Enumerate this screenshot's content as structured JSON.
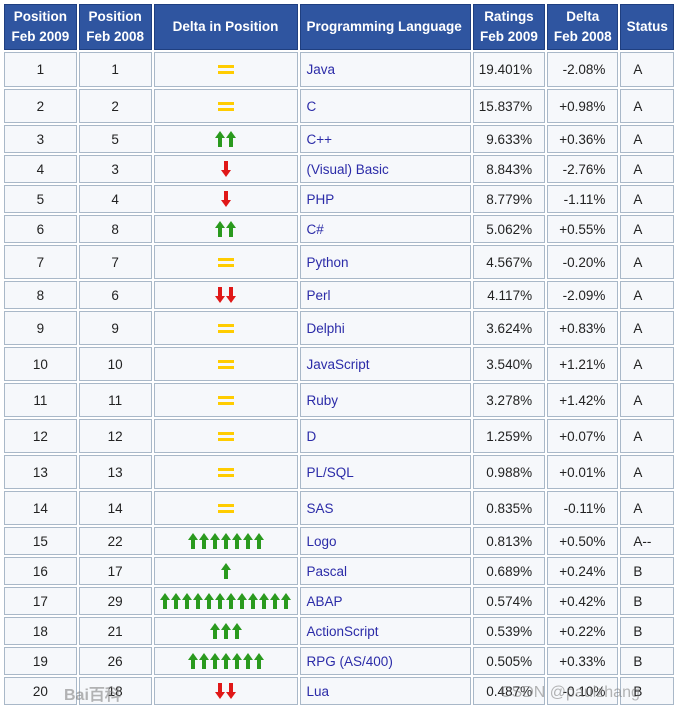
{
  "headers": {
    "pos2009": [
      "Position",
      "Feb 2009"
    ],
    "pos2008": [
      "Position",
      "Feb 2008"
    ],
    "delta_position": "Delta in Position",
    "language": "Programming Language",
    "ratings": [
      "Ratings",
      "Feb 2009"
    ],
    "delta": [
      "Delta",
      "Feb 2008"
    ],
    "status": "Status"
  },
  "rows": [
    {
      "pos2009": "1",
      "pos2008": "1",
      "trend": {
        "dir": "same",
        "count": 0
      },
      "language": "Java",
      "rating": "19.401%",
      "delta": "-2.08%",
      "status": "A",
      "h": 35
    },
    {
      "pos2009": "2",
      "pos2008": "2",
      "trend": {
        "dir": "same",
        "count": 0
      },
      "language": "C",
      "rating": "15.837%",
      "delta": "+0.98%",
      "status": "A",
      "h": 34
    },
    {
      "pos2009": "3",
      "pos2008": "5",
      "trend": {
        "dir": "up",
        "count": 2
      },
      "language": "C++",
      "rating": "9.633%",
      "delta": "+0.36%",
      "status": "A",
      "h": 28
    },
    {
      "pos2009": "4",
      "pos2008": "3",
      "trend": {
        "dir": "down",
        "count": 1
      },
      "language": "(Visual) Basic",
      "rating": "8.843%",
      "delta": "-2.76%",
      "status": "A",
      "h": 28
    },
    {
      "pos2009": "5",
      "pos2008": "4",
      "trend": {
        "dir": "down",
        "count": 1
      },
      "language": "PHP",
      "rating": "8.779%",
      "delta": "-1.11%",
      "status": "A",
      "h": 28
    },
    {
      "pos2009": "6",
      "pos2008": "8",
      "trend": {
        "dir": "up",
        "count": 2
      },
      "language": "C#",
      "rating": "5.062%",
      "delta": "+0.55%",
      "status": "A",
      "h": 28
    },
    {
      "pos2009": "7",
      "pos2008": "7",
      "trend": {
        "dir": "same",
        "count": 0
      },
      "language": "Python",
      "rating": "4.567%",
      "delta": "-0.20%",
      "status": "A",
      "h": 34
    },
    {
      "pos2009": "8",
      "pos2008": "6",
      "trend": {
        "dir": "down",
        "count": 2
      },
      "language": "Perl",
      "rating": "4.117%",
      "delta": "-2.09%",
      "status": "A",
      "h": 28
    },
    {
      "pos2009": "9",
      "pos2008": "9",
      "trend": {
        "dir": "same",
        "count": 0
      },
      "language": "Delphi",
      "rating": "3.624%",
      "delta": "+0.83%",
      "status": "A",
      "h": 34
    },
    {
      "pos2009": "10",
      "pos2008": "10",
      "trend": {
        "dir": "same",
        "count": 0
      },
      "language": "JavaScript",
      "rating": "3.540%",
      "delta": "+1.21%",
      "status": "A",
      "h": 34
    },
    {
      "pos2009": "11",
      "pos2008": "11",
      "trend": {
        "dir": "same",
        "count": 0
      },
      "language": "Ruby",
      "rating": "3.278%",
      "delta": "+1.42%",
      "status": "A",
      "h": 34
    },
    {
      "pos2009": "12",
      "pos2008": "12",
      "trend": {
        "dir": "same",
        "count": 0
      },
      "language": "D",
      "rating": "1.259%",
      "delta": "+0.07%",
      "status": "A",
      "h": 34
    },
    {
      "pos2009": "13",
      "pos2008": "13",
      "trend": {
        "dir": "same",
        "count": 0
      },
      "language": "PL/SQL",
      "rating": "0.988%",
      "delta": "+0.01%",
      "status": "A",
      "h": 34
    },
    {
      "pos2009": "14",
      "pos2008": "14",
      "trend": {
        "dir": "same",
        "count": 0
      },
      "language": "SAS",
      "rating": "0.835%",
      "delta": "-0.11%",
      "status": "A",
      "h": 34
    },
    {
      "pos2009": "15",
      "pos2008": "22",
      "trend": {
        "dir": "up",
        "count": 7
      },
      "language": "Logo",
      "rating": "0.813%",
      "delta": "+0.50%",
      "status": "A--",
      "h": 28
    },
    {
      "pos2009": "16",
      "pos2008": "17",
      "trend": {
        "dir": "up",
        "count": 1
      },
      "language": "Pascal",
      "rating": "0.689%",
      "delta": "+0.24%",
      "status": "B",
      "h": 28
    },
    {
      "pos2009": "17",
      "pos2008": "29",
      "trend": {
        "dir": "up",
        "count": 12
      },
      "language": "ABAP",
      "rating": "0.574%",
      "delta": "+0.42%",
      "status": "B",
      "h": 28
    },
    {
      "pos2009": "18",
      "pos2008": "21",
      "trend": {
        "dir": "up",
        "count": 3
      },
      "language": "ActionScript",
      "rating": "0.539%",
      "delta": "+0.22%",
      "status": "B",
      "h": 28
    },
    {
      "pos2009": "19",
      "pos2008": "26",
      "trend": {
        "dir": "up",
        "count": 7
      },
      "language": "RPG (AS/400)",
      "rating": "0.505%",
      "delta": "+0.33%",
      "status": "B",
      "h": 28
    },
    {
      "pos2009": "20",
      "pos2008": "18",
      "trend": {
        "dir": "down",
        "count": 2
      },
      "language": "Lua",
      "rating": "0.487%",
      "delta": "-0.10%",
      "status": "B",
      "h": 28
    }
  ],
  "watermarks": {
    "baidu": "Bai百科",
    "csdn": "CSDN @paulzhang"
  },
  "colors": {
    "header_bg": "#2f55a0",
    "up": "#2a9a1e",
    "down": "#e01818",
    "same": "#ffcc00",
    "link": "#2b2ba8"
  }
}
